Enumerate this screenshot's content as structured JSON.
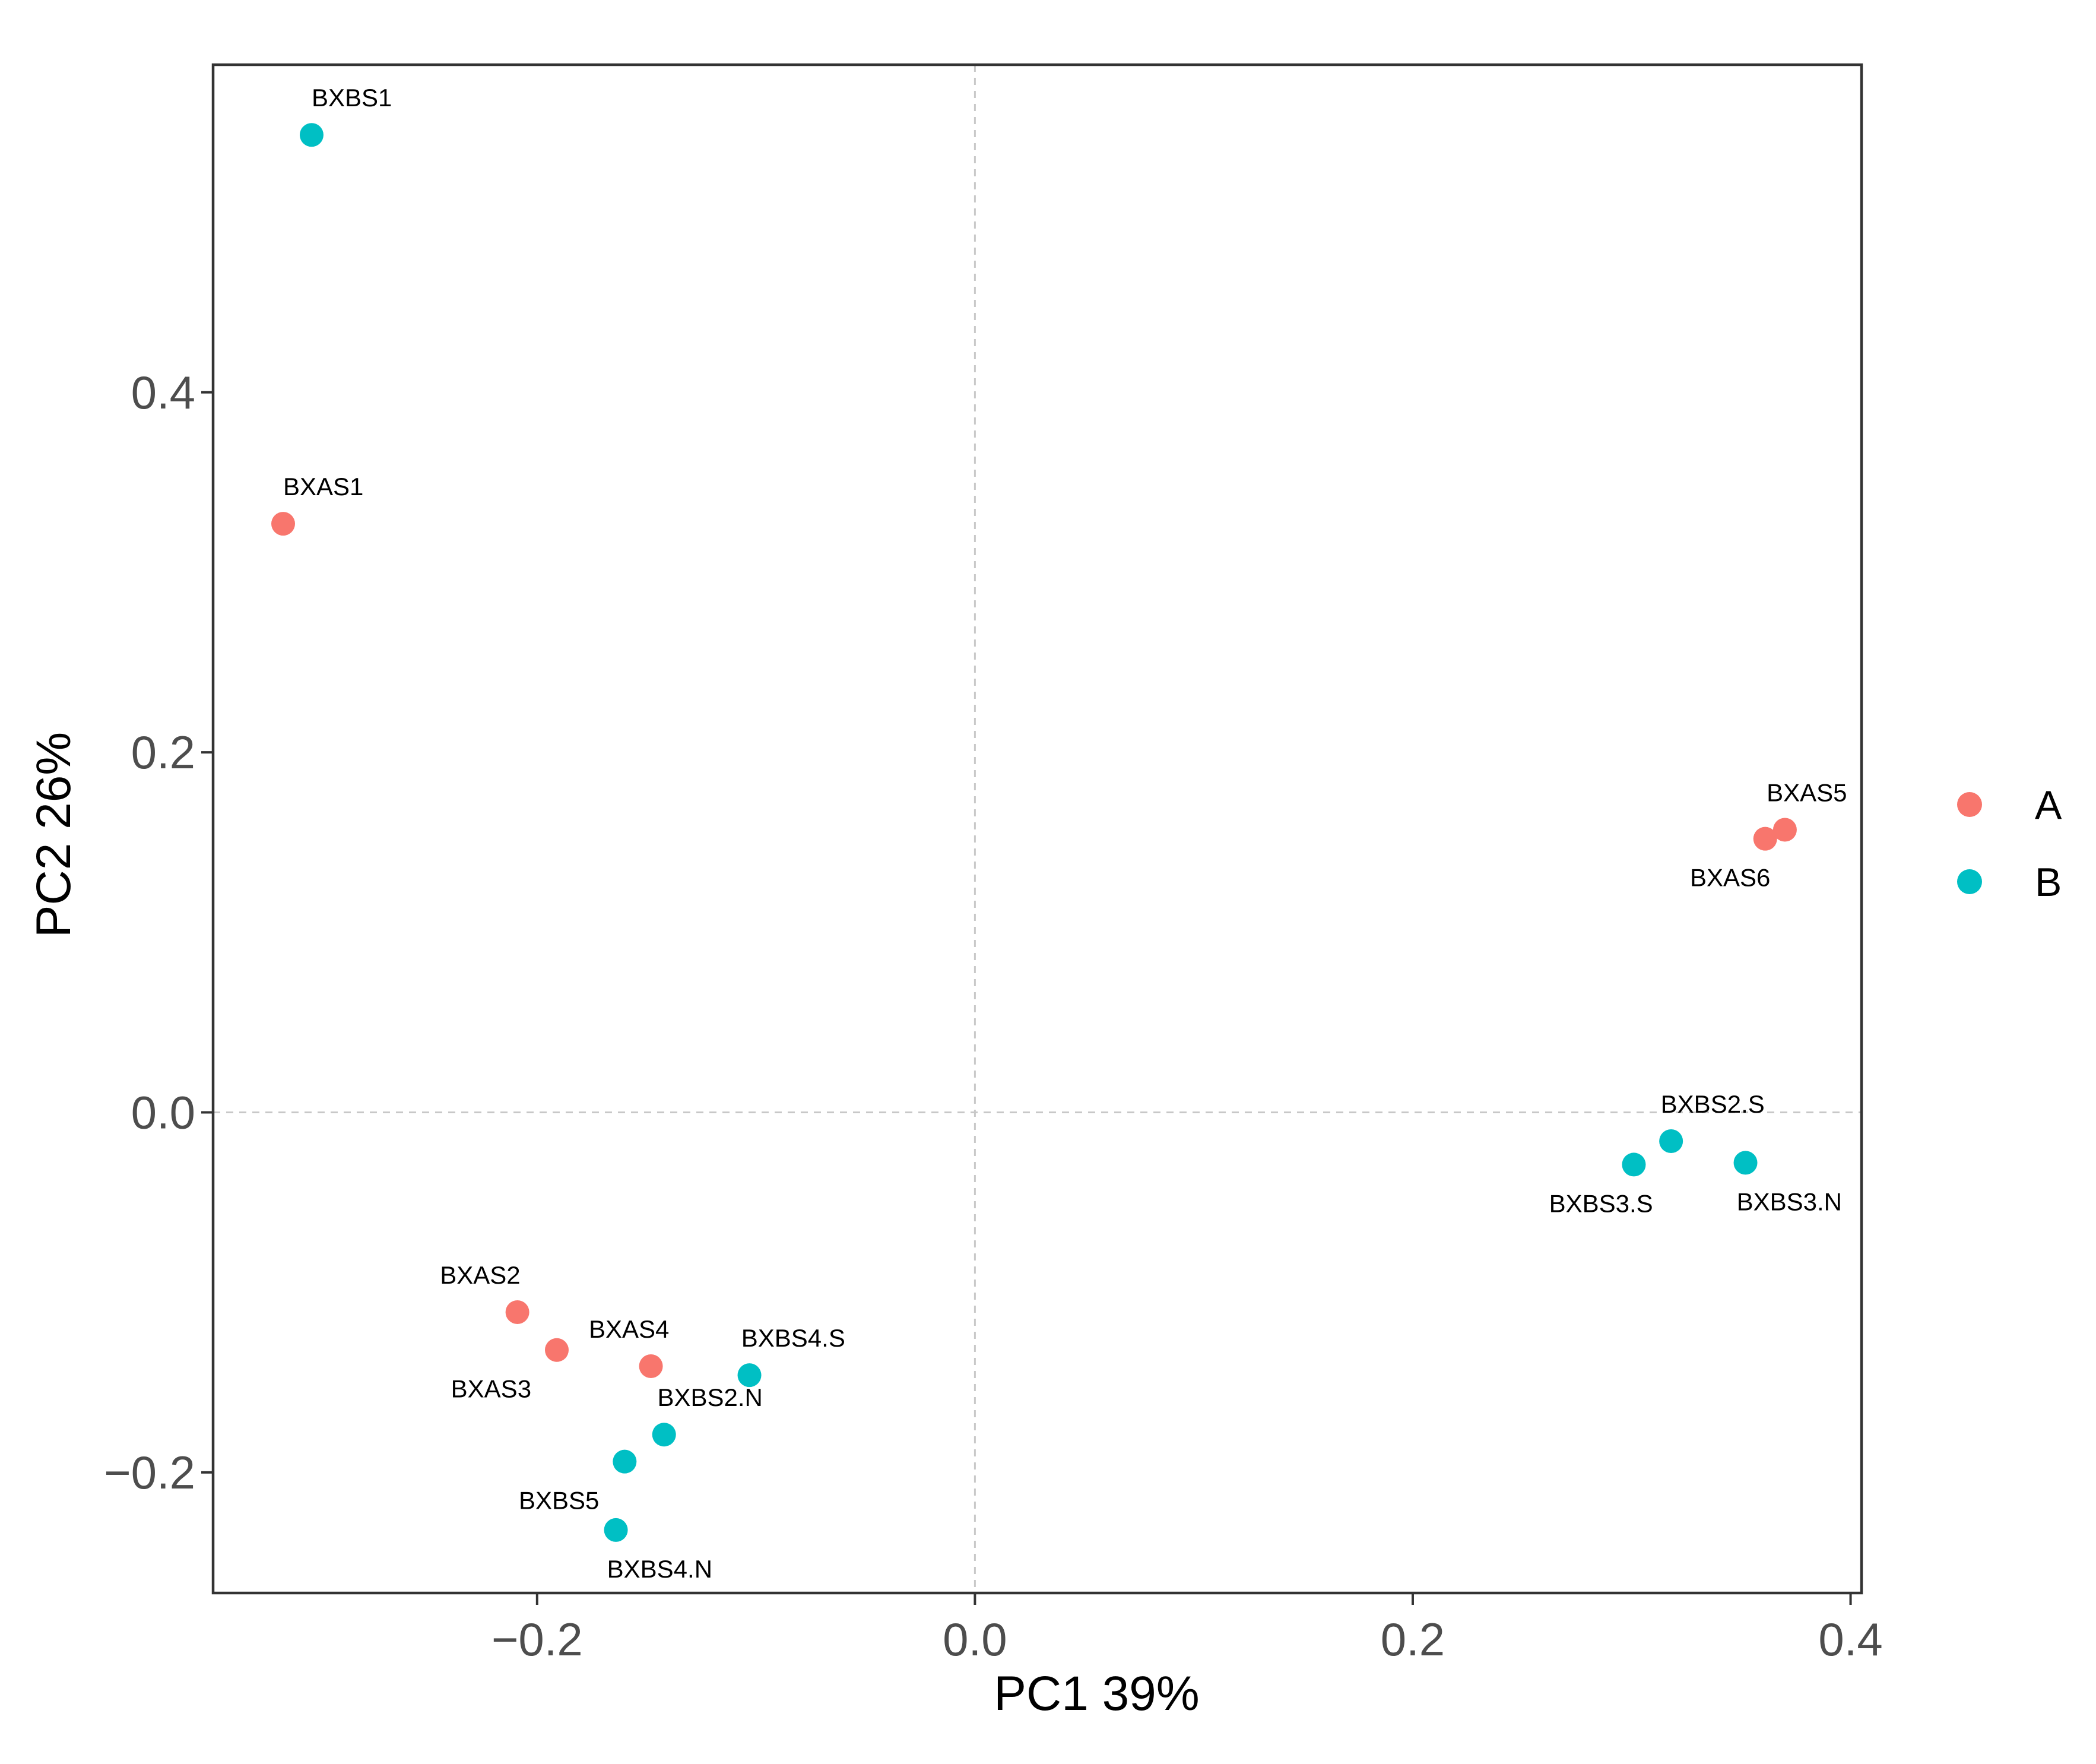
{
  "chart_data": {
    "type": "scatter",
    "title": "",
    "xlabel": "PC1 39%",
    "ylabel": "PC2 26%",
    "xlim": [
      -0.348,
      0.405
    ],
    "ylim": [
      -0.267,
      0.582
    ],
    "x_ticks": [
      -0.2,
      0.0,
      0.2,
      0.4
    ],
    "x_tick_labels": [
      "−0.2",
      "0.0",
      "0.2",
      "0.4"
    ],
    "y_ticks": [
      -0.2,
      0.0,
      0.2,
      0.4
    ],
    "y_tick_labels": [
      "−0.2",
      "0.0",
      "0.2",
      "0.4"
    ],
    "grid": false,
    "reference_lines": {
      "x": 0.0,
      "y": 0.0,
      "style": "dashed"
    },
    "legend": {
      "position": "right"
    },
    "series": [
      {
        "name": "A",
        "color": "#F8766D",
        "points": [
          {
            "label": "BXAS1",
            "x": -0.316,
            "y": 0.327,
            "label_anchor": "start",
            "label_dx": 0,
            "label_dy": -1
          },
          {
            "label": "BXAS2",
            "x": -0.209,
            "y": -0.111,
            "label_anchor": "middle",
            "label_dx": -0.017,
            "label_dy": -1
          },
          {
            "label": "BXAS3",
            "x": -0.191,
            "y": -0.132,
            "label_anchor": "middle",
            "label_dx": -0.03,
            "label_dy": 1
          },
          {
            "label": "BXAS4",
            "x": -0.148,
            "y": -0.141,
            "label_anchor": "middle",
            "label_dx": -0.01,
            "label_dy": -1
          },
          {
            "label": "BXAS5",
            "x": 0.37,
            "y": 0.157,
            "label_anchor": "middle",
            "label_dx": 0.01,
            "label_dy": -1
          },
          {
            "label": "BXAS6",
            "x": 0.361,
            "y": 0.152,
            "label_anchor": "middle",
            "label_dx": -0.016,
            "label_dy": 1
          }
        ]
      },
      {
        "name": "B",
        "color": "#00BFC4",
        "points": [
          {
            "label": "BXBS1",
            "x": -0.303,
            "y": 0.543,
            "label_anchor": "start",
            "label_dx": 0,
            "label_dy": -1
          },
          {
            "label": "BXBS2.S",
            "x": 0.318,
            "y": -0.016,
            "label_anchor": "middle",
            "label_dx": 0.019,
            "label_dy": -1
          },
          {
            "label": "BXBS3.S",
            "x": 0.301,
            "y": -0.029,
            "label_anchor": "middle",
            "label_dx": -0.015,
            "label_dy": 1
          },
          {
            "label": "BXBS3.N",
            "x": 0.352,
            "y": -0.028,
            "label_anchor": "middle",
            "label_dx": 0.02,
            "label_dy": 1
          },
          {
            "label": "BXBS4.S",
            "x": -0.103,
            "y": -0.146,
            "label_anchor": "middle",
            "label_dx": 0.02,
            "label_dy": -1
          },
          {
            "label": "BXBS2.N",
            "x": -0.142,
            "y": -0.179,
            "label_anchor": "middle",
            "label_dx": 0.021,
            "label_dy": -1
          },
          {
            "label": "BXBS5",
            "x": -0.16,
            "y": -0.194,
            "label_anchor": "middle",
            "label_dx": -0.03,
            "label_dy": 1
          },
          {
            "label": "BXBS4.N",
            "x": -0.164,
            "y": -0.232,
            "label_anchor": "middle",
            "label_dx": 0.02,
            "label_dy": 1
          }
        ]
      }
    ]
  }
}
